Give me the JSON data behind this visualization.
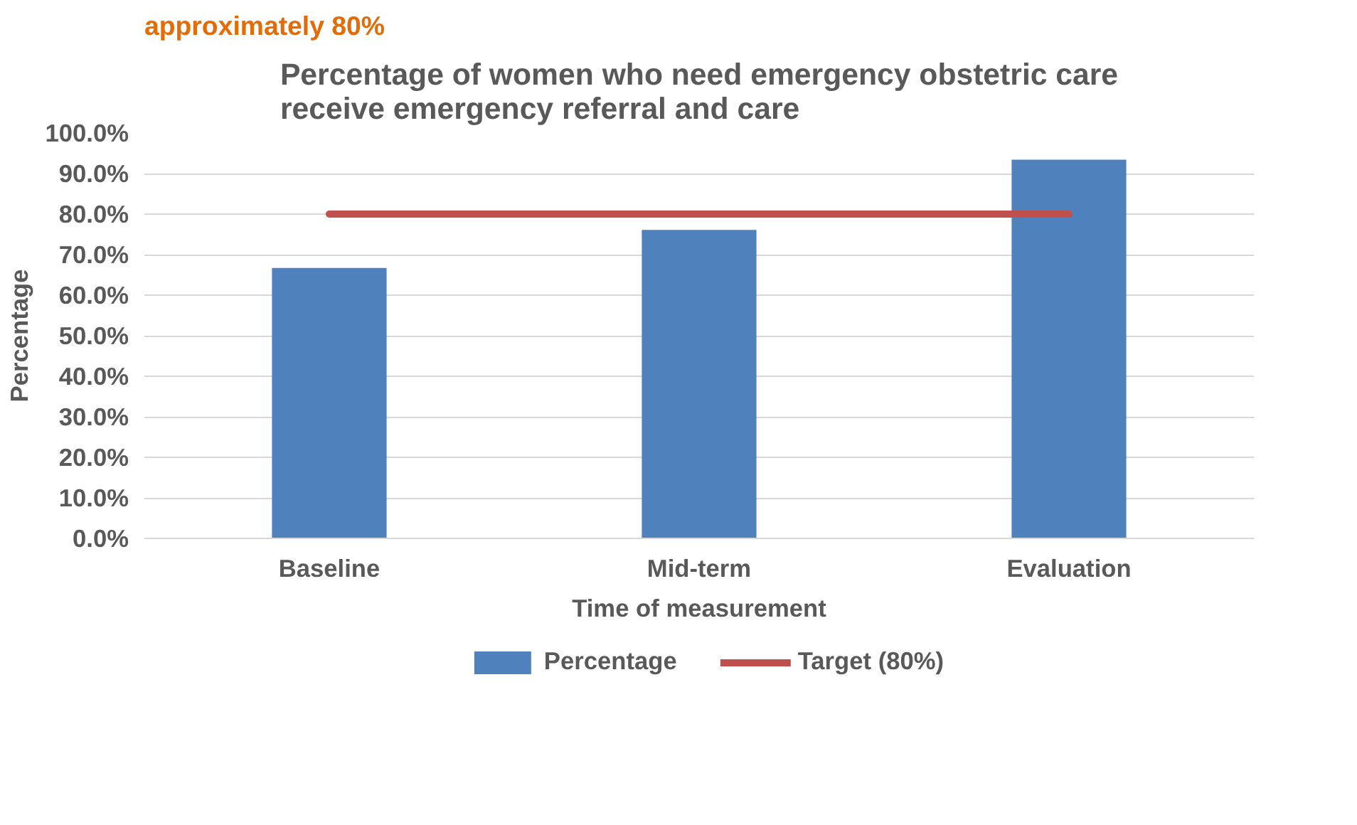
{
  "chart_data": {
    "type": "bar",
    "title": "Percentage of women who need emergency obstetric care\nreceive emergency referral and care",
    "annotations": [
      "approximately 80%"
    ],
    "xlabel": "Time of measurement",
    "ylabel": "Percentage",
    "categories": [
      "Baseline",
      "Mid-term",
      "Evaluation"
    ],
    "series": [
      {
        "name": "Percentage",
        "color": "#4f81bd",
        "values": [
          66.7,
          76.1,
          93.4
        ]
      },
      {
        "name": "Target (80%)",
        "type": "line",
        "color": "#c0504d",
        "values": [
          80,
          80,
          80
        ]
      }
    ],
    "ylim": [
      0,
      100
    ],
    "yticks": [
      {
        "value": 0,
        "label": "0.0%"
      },
      {
        "value": 10,
        "label": "10.0%"
      },
      {
        "value": 20,
        "label": "20.0%"
      },
      {
        "value": 30,
        "label": "30.0%"
      },
      {
        "value": 40,
        "label": "40.0%"
      },
      {
        "value": 50,
        "label": "50.0%"
      },
      {
        "value": 60,
        "label": "60.0%"
      },
      {
        "value": 70,
        "label": "70.0%"
      },
      {
        "value": 80,
        "label": "80.0%"
      },
      {
        "value": 90,
        "label": "90.0%"
      },
      {
        "value": 100,
        "label": "100.0%"
      }
    ],
    "grid": "y",
    "legend": "bottom"
  }
}
